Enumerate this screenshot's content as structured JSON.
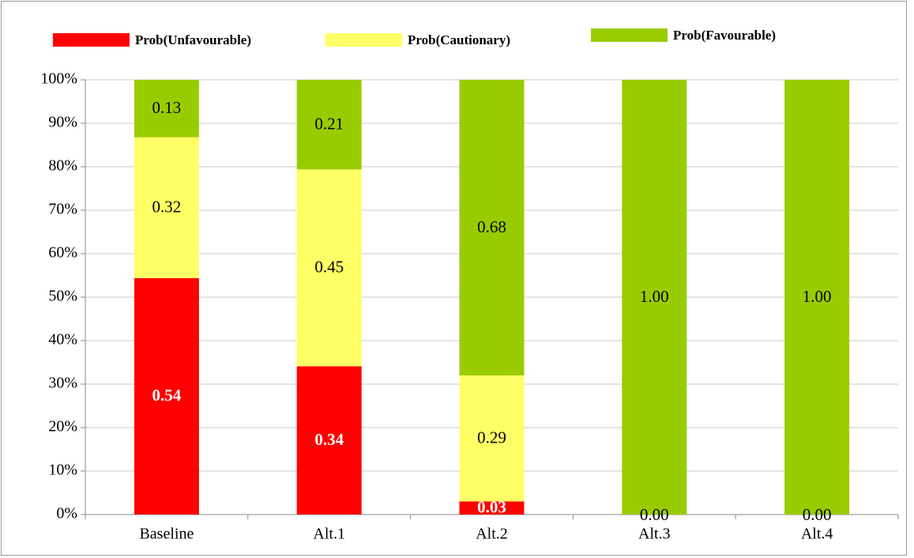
{
  "chart_data": {
    "type": "stacked_bar",
    "categories": [
      "Baseline",
      "Alt.1",
      "Alt.2",
      "Alt.3",
      "Alt.4"
    ],
    "series": [
      {
        "name": "Prob(Unfavourable)",
        "color": "#ff0000",
        "values": [
          54.4,
          34.1,
          3,
          0,
          0
        ],
        "value_labels": [
          "0.54",
          "0.34",
          "0.03",
          null,
          null
        ]
      },
      {
        "name": "Prob(Cautionary)",
        "color": "#ffff66",
        "values": [
          32.4,
          45.3,
          29,
          0,
          0
        ],
        "value_labels": [
          "0.32",
          "0.45",
          "0.29",
          "0.00",
          "0.00"
        ]
      },
      {
        "name": "Prob(Favourable)",
        "color": "#99cc00",
        "values": [
          13.2,
          20.6,
          68,
          100,
          100
        ],
        "value_labels": [
          "0.13",
          "0.21",
          "0.68",
          "1.00",
          "1.00"
        ]
      }
    ],
    "ylim": [
      0,
      100
    ],
    "yticks": [
      {
        "value": 0,
        "label": "0%"
      },
      {
        "value": 10,
        "label": "10%"
      },
      {
        "value": 20,
        "label": "20%"
      },
      {
        "value": 30,
        "label": "30%"
      },
      {
        "value": 40,
        "label": "40%"
      },
      {
        "value": 50,
        "label": "50%"
      },
      {
        "value": 60,
        "label": "60%"
      },
      {
        "value": 70,
        "label": "70%"
      },
      {
        "value": 80,
        "label": "80%"
      },
      {
        "value": 90,
        "label": "90%"
      },
      {
        "value": 100,
        "label": "100%"
      }
    ],
    "grid": true,
    "legend": "top"
  }
}
